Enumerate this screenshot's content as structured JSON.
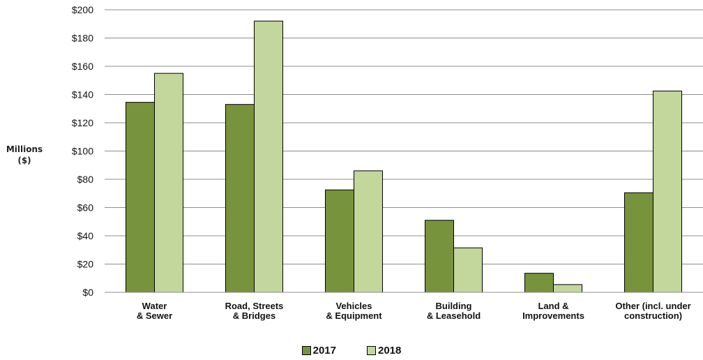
{
  "chart_data": {
    "type": "bar",
    "title": "",
    "xlabel": "",
    "ylabel": [
      "Millions",
      "($)"
    ],
    "categories": [
      [
        "Water",
        "& Sewer"
      ],
      [
        "Road, Streets",
        "& Bridges"
      ],
      [
        "Vehicles",
        "& Equipment"
      ],
      [
        "Building",
        "& Leasehold"
      ],
      [
        "Land &",
        "Improvements"
      ],
      [
        "Other (incl. under",
        "construction)"
      ]
    ],
    "series": [
      {
        "name": "2017",
        "color": "#77933c",
        "values": [
          134.5,
          133,
          72.5,
          51,
          13.5,
          70.5
        ]
      },
      {
        "name": "2018",
        "color": "#c3d69b",
        "values": [
          155,
          192,
          86,
          31.5,
          5.5,
          142.5
        ]
      }
    ],
    "ylim": [
      0,
      200
    ],
    "yticks": [
      0,
      20,
      40,
      60,
      80,
      100,
      120,
      140,
      160,
      180,
      200
    ],
    "ytick_labels": [
      "$0",
      "$20",
      "$40",
      "$60",
      "$80",
      "$100",
      "$120",
      "$140",
      "$160",
      "$180",
      "$200"
    ],
    "grid": true,
    "legend_position": "bottom-center"
  }
}
